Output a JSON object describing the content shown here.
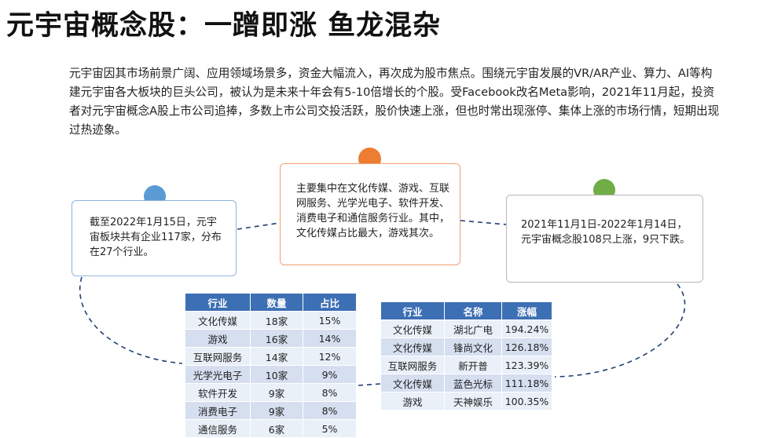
{
  "title": "元宇宙概念股：一蹭即涨 鱼龙混杂",
  "intro": "元宇宙因其市场前景广阔、应用领域场景多，资金大幅流入，再次成为股市焦点。围绕元宇宙发展的VR/AR产业、算力、AI等构建元宇宙各大板块的巨头公司，被认为是未来十年会有5-10倍增长的个股。受Facebook改名Meta影响，2021年11月起，投资者对元宇宙概念A股上市公司追捧，多数上市公司交投活跃，股价快速上涨，但也时常出现涨停、集体上涨的市场行情，短期出现过热迹象。",
  "colors": {
    "blue_dot": "#5b9bd5",
    "orange_dot": "#ed7d31",
    "green_dot": "#70ad47",
    "table_header": "#3d6fb4"
  },
  "boxes": {
    "left": "截至2022年1月15日，元宇宙板块共有企业117家，分布在27个行业。",
    "middle": "主要集中在文化传媒、游戏、互联网服务、光学光电子、软件开发、消费电子和通信服务行业。其中，文化传媒占比最大，游戏其次。",
    "right": "2021年11月1日-2022年1月14日，元宇宙概念股108只上涨，9只下跌。"
  },
  "industry_table": {
    "headers": [
      "行业",
      "数量",
      "占比"
    ],
    "rows": [
      [
        "文化传媒",
        "18家",
        "15%"
      ],
      [
        "游戏",
        "16家",
        "14%"
      ],
      [
        "互联网服务",
        "14家",
        "12%"
      ],
      [
        "光学光电子",
        "10家",
        "9%"
      ],
      [
        "软件开发",
        "9家",
        "8%"
      ],
      [
        "消费电子",
        "9家",
        "8%"
      ],
      [
        "通信服务",
        "6家",
        "5%"
      ]
    ]
  },
  "stock_table": {
    "headers": [
      "行业",
      "名称",
      "涨幅"
    ],
    "rows": [
      [
        "文化传媒",
        "湖北广电",
        "194.24%"
      ],
      [
        "文化传媒",
        "锋尚文化",
        "126.18%"
      ],
      [
        "互联网服务",
        "新开普",
        "123.39%"
      ],
      [
        "文化传媒",
        "蓝色光标",
        "111.18%"
      ],
      [
        "游戏",
        "天神娱乐",
        "100.35%"
      ]
    ]
  }
}
